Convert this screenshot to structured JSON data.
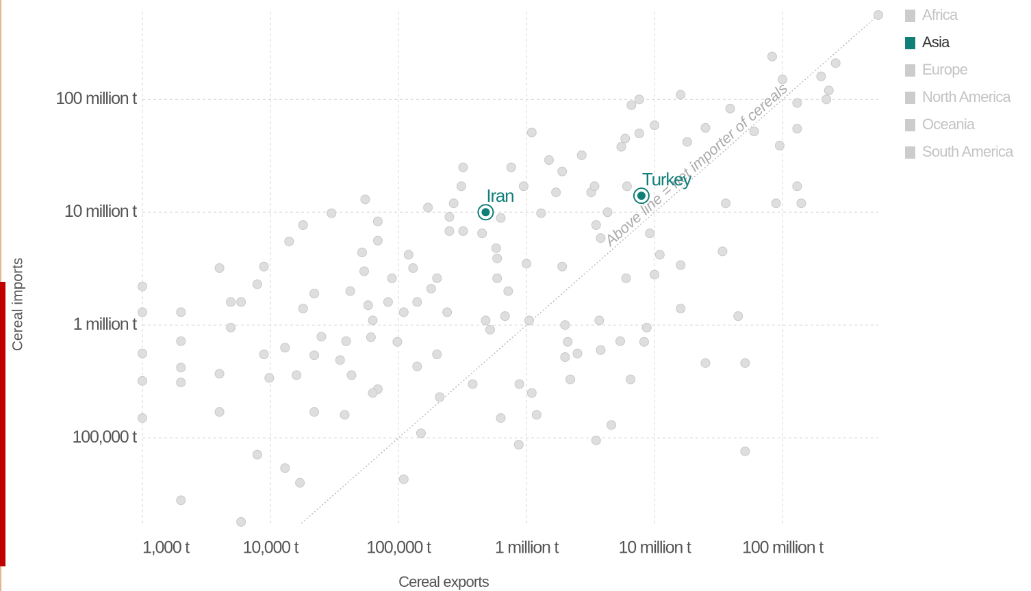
{
  "chart_data": {
    "type": "scatter",
    "x_label": "Cereal exports",
    "y_label": "Cereal imports",
    "annotation": "Above line = net importer of cereals",
    "log_x": true,
    "log_y": true,
    "grid": true,
    "xlim": [
      1000,
      560000000
    ],
    "ylim": [
      17500,
      600000000
    ],
    "xticks": [
      {
        "value": 1000,
        "label": "1,000 t"
      },
      {
        "value": 10000,
        "label": "10,000 t"
      },
      {
        "value": 100000,
        "label": "100,000 t"
      },
      {
        "value": 1000000,
        "label": "1 million t"
      },
      {
        "value": 10000000,
        "label": "10 million t"
      },
      {
        "value": 100000000,
        "label": "100 million t"
      }
    ],
    "yticks": [
      {
        "value": 100000,
        "label": "100,000 t"
      },
      {
        "value": 1000000,
        "label": "1 million t"
      },
      {
        "value": 10000000,
        "label": "10 million t"
      },
      {
        "value": 100000000,
        "label": "100 million t"
      }
    ],
    "legend_position": "top-right",
    "legend": [
      {
        "name": "Africa",
        "color": "#cccccc"
      },
      {
        "name": "Asia",
        "color": "#0f7f78"
      },
      {
        "name": "Europe",
        "color": "#cccccc"
      },
      {
        "name": "North America",
        "color": "#cccccc"
      },
      {
        "name": "Oceania",
        "color": "#cccccc"
      },
      {
        "name": "South America",
        "color": "#cccccc"
      }
    ],
    "points": {
      "color": "#dedede",
      "x": [
        1000,
        1000,
        1000,
        1000,
        1000,
        2000,
        2000,
        2000,
        2000,
        2000,
        4000,
        4000,
        4000,
        4900,
        5900,
        4900,
        5900,
        7900,
        8900,
        7900,
        8900,
        9800,
        14000,
        18000,
        13000,
        13000,
        16000,
        17000,
        18000,
        22000,
        22000,
        22000,
        25000,
        30000,
        35000,
        38000,
        42000,
        43000,
        39000,
        52000,
        55000,
        54000,
        58000,
        63000,
        61000,
        69000,
        69000,
        69000,
        63000,
        83000,
        89000,
        98000,
        110000,
        120000,
        130000,
        140000,
        140000,
        110000,
        150000,
        170000,
        180000,
        200000,
        200000,
        210000,
        240000,
        250000,
        250000,
        270000,
        310000,
        320000,
        320000,
        380000,
        450000,
        480000,
        520000,
        580000,
        590000,
        590000,
        630000,
        720000,
        680000,
        760000,
        630000,
        870000,
        950000,
        1000000,
        1050000,
        880000,
        1100000,
        1200000,
        1100000,
        1300000,
        1500000,
        1700000,
        1900000,
        1900000,
        2000000,
        2100000,
        2000000,
        2500000,
        2200000,
        2700000,
        3200000,
        3400000,
        3500000,
        3800000,
        3700000,
        3800000,
        3500000,
        4300000,
        4600000,
        5400000,
        5500000,
        5900000,
        6100000,
        6000000,
        6500000,
        6600000,
        7600000,
        7600000,
        8300000,
        8700000,
        9200000,
        10000000,
        10000000,
        11000000,
        16000000,
        16000000,
        16000000,
        18000000,
        25000000,
        25000000,
        34000000,
        36000000,
        39000000,
        45000000,
        51000000,
        51000000,
        60000000,
        83000000,
        95000000,
        89000000,
        100000000,
        130000000,
        130000000,
        140000000,
        130000000,
        200000000,
        220000000,
        230000000,
        260000000,
        560000000
      ],
      "values": [
        2200000,
        1300000,
        560000,
        320000,
        150000,
        1300000,
        720000,
        420000,
        310000,
        28000,
        3200000,
        370000,
        170000,
        1600000,
        1600000,
        950000,
        18000,
        2300000,
        3300000,
        71000,
        550000,
        340000,
        5500000,
        7700000,
        630000,
        54000,
        360000,
        40000,
        1400000,
        1900000,
        540000,
        170000,
        790000,
        9800000,
        490000,
        160000,
        2000000,
        360000,
        720000,
        4400000,
        13000000,
        3000000,
        1500000,
        1100000,
        780000,
        8300000,
        5600000,
        270000,
        250000,
        1600000,
        2600000,
        710000,
        1300000,
        4200000,
        3200000,
        430000,
        1600000,
        43000,
        110000,
        11000000,
        2100000,
        2600000,
        550000,
        230000,
        1300000,
        9100000,
        6800000,
        12000000,
        17000000,
        25000000,
        6800000,
        300000,
        6500000,
        1100000,
        910000,
        4800000,
        3900000,
        2600000,
        8900000,
        2000000,
        1200000,
        25000000,
        150000,
        87000,
        17000000,
        3500000,
        1100000,
        300000,
        250000,
        160000,
        51000000,
        9800000,
        29000000,
        15000000,
        3300000,
        23000000,
        1000000,
        710000,
        520000,
        560000,
        330000,
        32000000,
        15000000,
        17000000,
        7700000,
        5900000,
        1100000,
        600000,
        95000,
        10000000,
        130000,
        720000,
        38000000,
        45000000,
        17000000,
        2600000,
        330000,
        89000000,
        100000000,
        50000000,
        710000,
        950000,
        6500000,
        59000000,
        2800000,
        4200000,
        110000000,
        3400000,
        1400000,
        42000000,
        56000000,
        460000,
        4500000,
        12000000,
        83000000,
        1200000,
        460000,
        76000,
        52000000,
        240000000,
        39000000,
        12000000,
        150000000,
        55000000,
        17000000,
        12000000,
        93000000,
        160000000,
        100000000,
        120000000,
        210000000,
        560000000
      ]
    },
    "labeled_points": [
      {
        "label": "Iran",
        "x": 480000,
        "y": 10000000,
        "color": "#0f7f78"
      },
      {
        "label": "Turkey",
        "x": 7900000,
        "y": 14000000,
        "color": "#0f7f78"
      }
    ]
  }
}
